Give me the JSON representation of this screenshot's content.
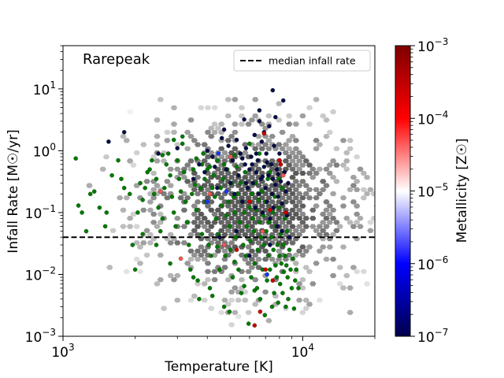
{
  "chart_data": {
    "type": "scatter",
    "annotation": "Rarepeak",
    "xlabel": "Temperature [K]",
    "ylabel": "Infall Rate [M☉/yr]",
    "xscale": "log",
    "yscale": "log",
    "xlim": [
      1000,
      20000
    ],
    "ylim": [
      0.001,
      50
    ],
    "x_ticks": [
      {
        "value": 1000,
        "base": "10",
        "exp": "3"
      },
      {
        "value": 10000,
        "base": "10",
        "exp": "4"
      }
    ],
    "y_ticks": [
      {
        "value": 0.001,
        "base": "10",
        "exp": "−3"
      },
      {
        "value": 0.01,
        "base": "10",
        "exp": "−2"
      },
      {
        "value": 0.1,
        "base": "10",
        "exp": "−1"
      },
      {
        "value": 1,
        "base": "10",
        "exp": "0"
      },
      {
        "value": 10,
        "base": "10",
        "exp": "1"
      }
    ],
    "median_infall_rate": 0.04,
    "legend": {
      "position": "upper-right",
      "entries": [
        {
          "label": "median infall rate",
          "style": "black-dashed-line"
        }
      ]
    },
    "colorbar": {
      "label": "Metallicity [Z☉]",
      "scale": "log",
      "range": [
        1e-07,
        0.001
      ],
      "ticks": [
        {
          "value": 1e-07,
          "base": "10",
          "exp": "−7"
        },
        {
          "value": 1e-06,
          "base": "10",
          "exp": "−6"
        },
        {
          "value": 1e-05,
          "base": "10",
          "exp": "−5"
        },
        {
          "value": 0.0001,
          "base": "10",
          "exp": "−4"
        },
        {
          "value": 0.001,
          "base": "10",
          "exp": "−3"
        }
      ],
      "colormap": "seismic"
    },
    "hexbin_background": {
      "colormap": "greys",
      "description_of_extent": "dense in 2000-15000 K, 0.003-2 Msun/yr"
    },
    "colors": {
      "green": "#007a00",
      "navy": "#0a0a4a",
      "median_line": "#000000"
    },
    "series": [
      {
        "name": "",
        "color_group": "green",
        "points": [
          [
            1130,
            0.75
          ],
          [
            1160,
            0.13
          ],
          [
            1200,
            0.1
          ],
          [
            1250,
            0.05
          ],
          [
            1300,
            0.2
          ],
          [
            1350,
            0.22
          ],
          [
            1420,
            0.12
          ],
          [
            1500,
            0.06
          ],
          [
            1520,
            0.1
          ],
          [
            1600,
            0.4
          ],
          [
            1700,
            0.7
          ],
          [
            1750,
            0.35
          ],
          [
            1800,
            0.25
          ],
          [
            1900,
            0.2
          ],
          [
            1950,
            0.03
          ],
          [
            2000,
            0.012
          ],
          [
            2050,
            0.1
          ],
          [
            2100,
            0.3
          ],
          [
            2150,
            0.16
          ],
          [
            2200,
            0.25
          ],
          [
            2250,
            0.45
          ],
          [
            2300,
            0.5
          ],
          [
            2350,
            0.7
          ],
          [
            2400,
            0.2
          ],
          [
            2450,
            0.35
          ],
          [
            2500,
            0.12
          ],
          [
            2550,
            0.05
          ],
          [
            2600,
            0.08
          ],
          [
            2650,
            0.25
          ],
          [
            2700,
            0.6
          ],
          [
            2750,
            0.9
          ],
          [
            2800,
            0.4
          ],
          [
            2850,
            0.18
          ],
          [
            2900,
            0.1
          ],
          [
            2950,
            0.06
          ],
          [
            3000,
            0.7
          ],
          [
            3050,
            0.35
          ],
          [
            3100,
            0.22
          ],
          [
            3150,
            1.3
          ],
          [
            3200,
            0.45
          ],
          [
            3250,
            0.15
          ],
          [
            3300,
            0.07
          ],
          [
            3350,
            0.03
          ],
          [
            3400,
            0.012
          ],
          [
            3450,
            0.2
          ],
          [
            3500,
            0.5
          ],
          [
            3550,
            0.28
          ],
          [
            3600,
            0.11
          ],
          [
            3650,
            0.008
          ],
          [
            3700,
            0.004
          ],
          [
            3750,
            0.25
          ],
          [
            3800,
            0.6
          ],
          [
            3850,
            0.9
          ],
          [
            3900,
            0.35
          ],
          [
            3950,
            0.15
          ],
          [
            4000,
            0.5
          ],
          [
            4050,
            0.03
          ],
          [
            4100,
            0.006
          ],
          [
            4150,
            0.02
          ],
          [
            4200,
            0.25
          ],
          [
            4250,
            0.4
          ],
          [
            4300,
            0.18
          ],
          [
            4350,
            0.08
          ],
          [
            4400,
            0.7
          ],
          [
            4450,
            0.045
          ],
          [
            4500,
            0.012
          ],
          [
            4550,
            0.25
          ],
          [
            4600,
            0.13
          ],
          [
            4650,
            0.35
          ],
          [
            4700,
            0.003
          ],
          [
            4750,
            0.02
          ],
          [
            4800,
            0.09
          ],
          [
            4850,
            0.5
          ],
          [
            4900,
            0.15
          ],
          [
            4950,
            0.06
          ],
          [
            5000,
            0.025
          ],
          [
            5050,
            0.3
          ],
          [
            5100,
            0.009
          ],
          [
            5150,
            0.18
          ],
          [
            5200,
            0.1
          ],
          [
            5250,
            0.04
          ],
          [
            5300,
            0.55
          ],
          [
            5350,
            0.2
          ],
          [
            5400,
            0.012
          ],
          [
            5450,
            0.07
          ],
          [
            5500,
            0.3
          ],
          [
            5550,
            0.005
          ],
          [
            5600,
            0.15
          ],
          [
            5650,
            0.03
          ],
          [
            5700,
            0.1
          ],
          [
            5750,
            0.45
          ],
          [
            5800,
            0.02
          ],
          [
            5850,
            0.06
          ],
          [
            5900,
            0.25
          ],
          [
            5950,
            0.0016
          ],
          [
            6000,
            0.12
          ],
          [
            6050,
            0.035
          ],
          [
            6100,
            0.009
          ],
          [
            6150,
            0.2
          ],
          [
            6200,
            0.08
          ],
          [
            6250,
            0.05
          ],
          [
            6300,
            0.015
          ],
          [
            6350,
            0.3
          ],
          [
            6400,
            0.11
          ],
          [
            6450,
            0.006
          ],
          [
            6500,
            0.025
          ],
          [
            6550,
            0.16
          ],
          [
            6600,
            0.07
          ],
          [
            6650,
            0.004
          ],
          [
            6700,
            0.04
          ],
          [
            6750,
            0.22
          ],
          [
            6800,
            0.012
          ],
          [
            6850,
            0.09
          ],
          [
            6900,
            0.03
          ],
          [
            6950,
            0.0022
          ],
          [
            7000,
            0.15
          ],
          [
            7050,
            0.05
          ],
          [
            7100,
            0.008
          ],
          [
            7150,
            0.35
          ],
          [
            7200,
            0.02
          ],
          [
            7250,
            0.07
          ],
          [
            7300,
            0.012
          ],
          [
            7350,
            0.6
          ],
          [
            7400,
            0.04
          ],
          [
            7450,
            0.003
          ],
          [
            7500,
            0.1
          ],
          [
            7550,
            0.025
          ],
          [
            7600,
            0.005
          ],
          [
            7650,
            0.18
          ],
          [
            7700,
            0.014
          ],
          [
            7750,
            0.06
          ],
          [
            7800,
            0.009
          ],
          [
            7850,
            0.03
          ],
          [
            7900,
            0.0035
          ],
          [
            7950,
            0.12
          ],
          [
            8000,
            0.02
          ],
          [
            8050,
            0.007
          ],
          [
            8100,
            0.045
          ],
          [
            8150,
            0.015
          ],
          [
            8200,
            0.25
          ],
          [
            8250,
            0.005
          ],
          [
            8300,
            0.03
          ],
          [
            8350,
            0.011
          ],
          [
            8400,
            0.08
          ],
          [
            8450,
            0.02
          ],
          [
            8500,
            0.003
          ],
          [
            8550,
            0.014
          ],
          [
            8600,
            0.05
          ],
          [
            8650,
            0.009
          ],
          [
            8700,
            0.004
          ],
          [
            8800,
            0.025
          ],
          [
            8900,
            0.012
          ],
          [
            9000,
            0.006
          ],
          [
            9100,
            0.018
          ],
          [
            9200,
            0.0028
          ],
          [
            9300,
            0.008
          ],
          [
            9400,
            0.012
          ],
          [
            9600,
            0.006
          ],
          [
            2600,
            0.85
          ],
          [
            2900,
            1.5
          ],
          [
            3150,
            1.7
          ],
          [
            3600,
            0.75
          ],
          [
            4100,
            0.55
          ],
          [
            4700,
            0.6
          ],
          [
            5200,
            0.85
          ],
          [
            6000,
            1.3
          ],
          [
            6600,
            0.9
          ],
          [
            7300,
            0.45
          ],
          [
            8000,
            0.35
          ],
          [
            2450,
            0.03
          ],
          [
            2150,
            0.045
          ],
          [
            2800,
            0.015
          ],
          [
            3500,
            0.009
          ],
          [
            4200,
            0.0045
          ],
          [
            4950,
            0.0025
          ],
          [
            5700,
            0.0065
          ],
          [
            6300,
            0.0055
          ],
          [
            5200,
            0.016
          ],
          [
            4400,
            0.028
          ],
          [
            3800,
            0.045
          ]
        ]
      },
      {
        "name": "",
        "color_group": "navy",
        "points": [
          [
            1550,
            1.4
          ],
          [
            1800,
            2.0
          ],
          [
            2500,
            0.9
          ],
          [
            3000,
            1.1
          ],
          [
            3500,
            0.35
          ],
          [
            3700,
            0.6
          ],
          [
            3900,
            0.45
          ],
          [
            4000,
            1.0
          ],
          [
            4200,
            0.8
          ],
          [
            4400,
            0.25
          ],
          [
            4600,
            1.6
          ],
          [
            4700,
            2.2
          ],
          [
            4800,
            0.5
          ],
          [
            4900,
            1.2
          ],
          [
            5000,
            0.3
          ],
          [
            5100,
            0.7
          ],
          [
            5200,
            0.2
          ],
          [
            5300,
            1.5
          ],
          [
            5400,
            0.4
          ],
          [
            5500,
            0.9
          ],
          [
            5600,
            0.15
          ],
          [
            5700,
            3.2
          ],
          [
            5750,
            0.6
          ],
          [
            5800,
            1.1
          ],
          [
            5900,
            0.25
          ],
          [
            6000,
            0.5
          ],
          [
            6100,
            0.8
          ],
          [
            6200,
            0.3
          ],
          [
            6300,
            1.8
          ],
          [
            6350,
            0.12
          ],
          [
            6400,
            0.45
          ],
          [
            6500,
            0.7
          ],
          [
            6550,
            0.2
          ],
          [
            6600,
            4.5
          ],
          [
            6700,
            0.35
          ],
          [
            6750,
            1.4
          ],
          [
            6800,
            0.1
          ],
          [
            6900,
            0.55
          ],
          [
            7000,
            0.25
          ],
          [
            7050,
            0.9
          ],
          [
            7100,
            0.15
          ],
          [
            7200,
            0.4
          ],
          [
            7250,
            2.5
          ],
          [
            7300,
            0.08
          ],
          [
            7400,
            0.6
          ],
          [
            7450,
            0.2
          ],
          [
            7500,
            0.35
          ],
          [
            7550,
            0.12
          ],
          [
            7600,
            1.2
          ],
          [
            7700,
            0.28
          ],
          [
            7800,
            0.5
          ],
          [
            7850,
            0.06
          ],
          [
            7900,
            0.18
          ],
          [
            8000,
            0.9
          ],
          [
            8100,
            0.32
          ],
          [
            8200,
            0.14
          ],
          [
            8300,
            6.5
          ],
          [
            8400,
            0.45
          ],
          [
            8500,
            0.22
          ],
          [
            8600,
            0.09
          ],
          [
            8700,
            0.3
          ],
          [
            8800,
            0.04
          ],
          [
            6600,
            3.0
          ],
          [
            6900,
            2.0
          ],
          [
            7500,
            9.5
          ],
          [
            7700,
            3.5
          ],
          [
            5800,
            0.3
          ],
          [
            6150,
            0.6
          ],
          [
            4500,
            0.04
          ],
          [
            5300,
            0.05
          ],
          [
            6000,
            0.02
          ],
          [
            7300,
            0.03
          ],
          [
            8200,
            0.05
          ],
          [
            4300,
            0.55
          ],
          [
            5600,
            0.75
          ],
          [
            6800,
            0.38
          ],
          [
            7100,
            0.65
          ],
          [
            7900,
            0.42
          ],
          [
            8100,
            0.6
          ],
          [
            6400,
            0.9
          ]
        ]
      },
      {
        "name": "",
        "color_group": "red",
        "points": [
          [
            6900,
            1.9
          ],
          [
            7000,
            0.012
          ],
          [
            7300,
            0.11
          ],
          [
            7500,
            0.008
          ],
          [
            8000,
            0.7
          ],
          [
            8100,
            0.6
          ],
          [
            6300,
            0.0015
          ],
          [
            6650,
            0.0025
          ],
          [
            5300,
            0.025
          ],
          [
            6000,
            0.15
          ],
          [
            8500,
            0.1
          ]
        ]
      },
      {
        "name": "",
        "color_group": "light-red",
        "points": [
          [
            2550,
            0.22
          ],
          [
            3100,
            0.018
          ],
          [
            4100,
            0.2
          ],
          [
            4700,
            0.03
          ],
          [
            5000,
            0.8
          ],
          [
            8300,
            0.4
          ],
          [
            6800,
            0.05
          ]
        ]
      },
      {
        "name": "",
        "color_group": "blue",
        "points": [
          [
            4000,
            0.15
          ],
          [
            4450,
            0.9
          ],
          [
            7100,
            0.01
          ],
          [
            4800,
            0.22
          ]
        ]
      }
    ]
  }
}
